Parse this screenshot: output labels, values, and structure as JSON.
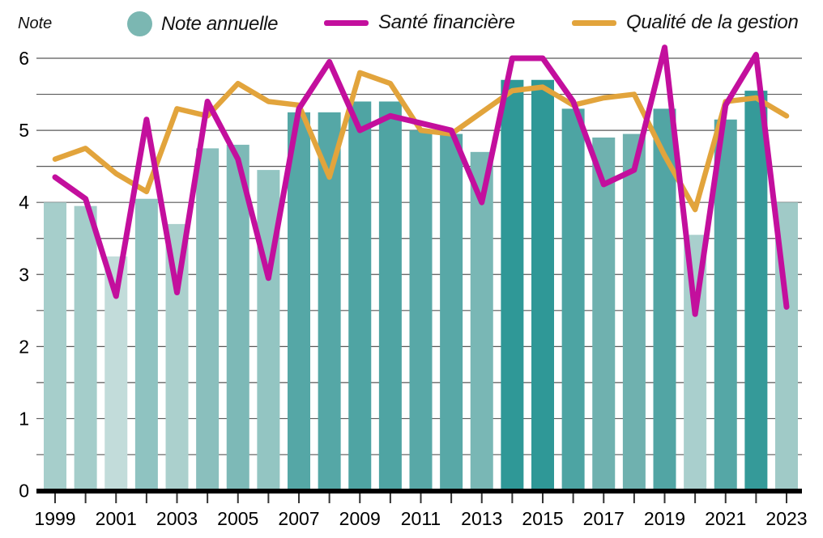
{
  "header": {
    "y_axis_title": "Note",
    "legend": [
      {
        "label": "Note annuelle",
        "swatch": "circle",
        "color": "#7bb7b2"
      },
      {
        "label": "Santé financière",
        "swatch": "line",
        "color": "#c30f9d"
      },
      {
        "label": "Qualité de la gestion",
        "swatch": "line",
        "color": "#e2a43c"
      }
    ]
  },
  "chart_data": {
    "type": "bar",
    "subtype": "combo-bar-and-lines",
    "x": [
      1999,
      2000,
      2001,
      2002,
      2003,
      2004,
      2005,
      2006,
      2007,
      2008,
      2009,
      2010,
      2011,
      2012,
      2013,
      2014,
      2015,
      2016,
      2017,
      2018,
      2019,
      2020,
      2021,
      2022,
      2023
    ],
    "x_axis_labeled_ticks": [
      "1999",
      "2001",
      "2003",
      "2005",
      "2007",
      "2009",
      "2011",
      "2013",
      "2015",
      "2017",
      "2019",
      "2021",
      "2023"
    ],
    "ylabel": "Note",
    "xlabel": "",
    "ylim": [
      0,
      6.2
    ],
    "y_ticks": [
      0,
      1,
      2,
      3,
      4,
      5,
      6
    ],
    "gridline_step": 0.5,
    "grid": "on",
    "legend_position": "top",
    "series": [
      {
        "name": "Note annuelle",
        "type": "bar",
        "values": [
          4.0,
          3.95,
          3.25,
          4.05,
          3.7,
          4.75,
          4.8,
          4.45,
          5.25,
          5.25,
          5.4,
          5.4,
          5.0,
          4.95,
          4.7,
          5.7,
          5.7,
          5.3,
          4.9,
          4.95,
          5.3,
          3.55,
          5.15,
          5.55,
          4.0
        ],
        "bar_colors": [
          "#a6cecb",
          "#a4cdca",
          "#c2dcda",
          "#8fc3c1",
          "#abd0cd",
          "#8abfbd",
          "#7db9b7",
          "#93c5c2",
          "#55a7a6",
          "#55a7a6",
          "#4fa4a3",
          "#4fa4a3",
          "#58a8a7",
          "#58a8a7",
          "#79b7b5",
          "#2f9897",
          "#2f9897",
          "#4da4a3",
          "#6fb1af",
          "#6fb1af",
          "#52a5a4",
          "#a9cfcd",
          "#55a7a6",
          "#359a99",
          "#a0cac7"
        ]
      },
      {
        "name": "Santé financière",
        "type": "line",
        "color": "#c30f9d",
        "values": [
          4.35,
          4.05,
          2.7,
          5.15,
          2.75,
          5.4,
          4.6,
          2.95,
          5.3,
          5.95,
          5.0,
          5.2,
          5.1,
          5.0,
          4.0,
          6.0,
          6.0,
          5.4,
          4.25,
          4.45,
          6.15,
          2.45,
          5.35,
          6.05,
          2.55
        ]
      },
      {
        "name": "Qualité de la gestion",
        "type": "line",
        "color": "#e2a43c",
        "values": [
          4.6,
          4.75,
          4.4,
          4.15,
          5.3,
          5.2,
          5.65,
          5.4,
          5.35,
          4.35,
          5.8,
          5.65,
          5.0,
          4.95,
          5.25,
          5.55,
          5.6,
          5.35,
          5.45,
          5.5,
          4.65,
          3.9,
          5.4,
          5.45,
          5.2
        ]
      }
    ],
    "style": {
      "gridline_color": "#595959",
      "axis_color": "#000000",
      "tick_color": "#333333",
      "label_color": "#000000"
    }
  }
}
